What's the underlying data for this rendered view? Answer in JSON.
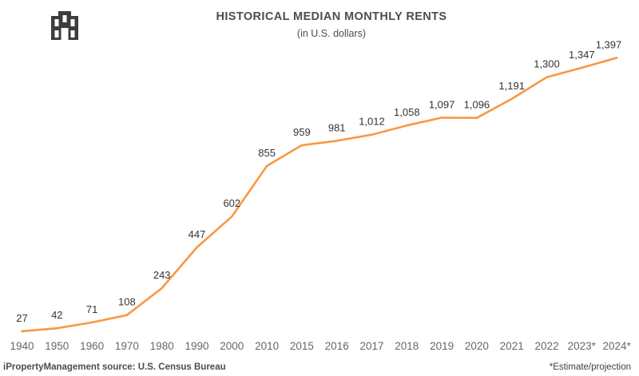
{
  "header": {
    "title": "HISTORICAL MEDIAN MONTHLY RENTS",
    "subtitle": "(in U.S. dollars)",
    "icon": "building-icon"
  },
  "footer": {
    "left": "iPropertyManagement source: U.S. Census Bureau",
    "right": "*Estimate/projection"
  },
  "colors": {
    "line": "#F79843",
    "title": "#4D4D4D",
    "data_label": "#333333",
    "axis_label": "#6D665E",
    "icon": "#3D3D3D"
  },
  "chart_data": {
    "type": "line",
    "title": "HISTORICAL MEDIAN MONTHLY RENTS",
    "subtitle": "(in U.S. dollars)",
    "categories": [
      "1940",
      "1950",
      "1960",
      "1970",
      "1980",
      "1990",
      "2000",
      "2010",
      "2015",
      "2016",
      "2017",
      "2018",
      "2019",
      "2020",
      "2021",
      "2022",
      "2023*",
      "2024*"
    ],
    "values": [
      27,
      42,
      71,
      108,
      243,
      447,
      602,
      855,
      959,
      981,
      1012,
      1058,
      1097,
      1096,
      1191,
      1300,
      1347,
      1397
    ],
    "xlabel": "",
    "ylabel": "",
    "ylim": [
      0,
      1500
    ],
    "grid": false,
    "legend": false,
    "data_labels": true,
    "notes": "*Estimate/projection"
  }
}
